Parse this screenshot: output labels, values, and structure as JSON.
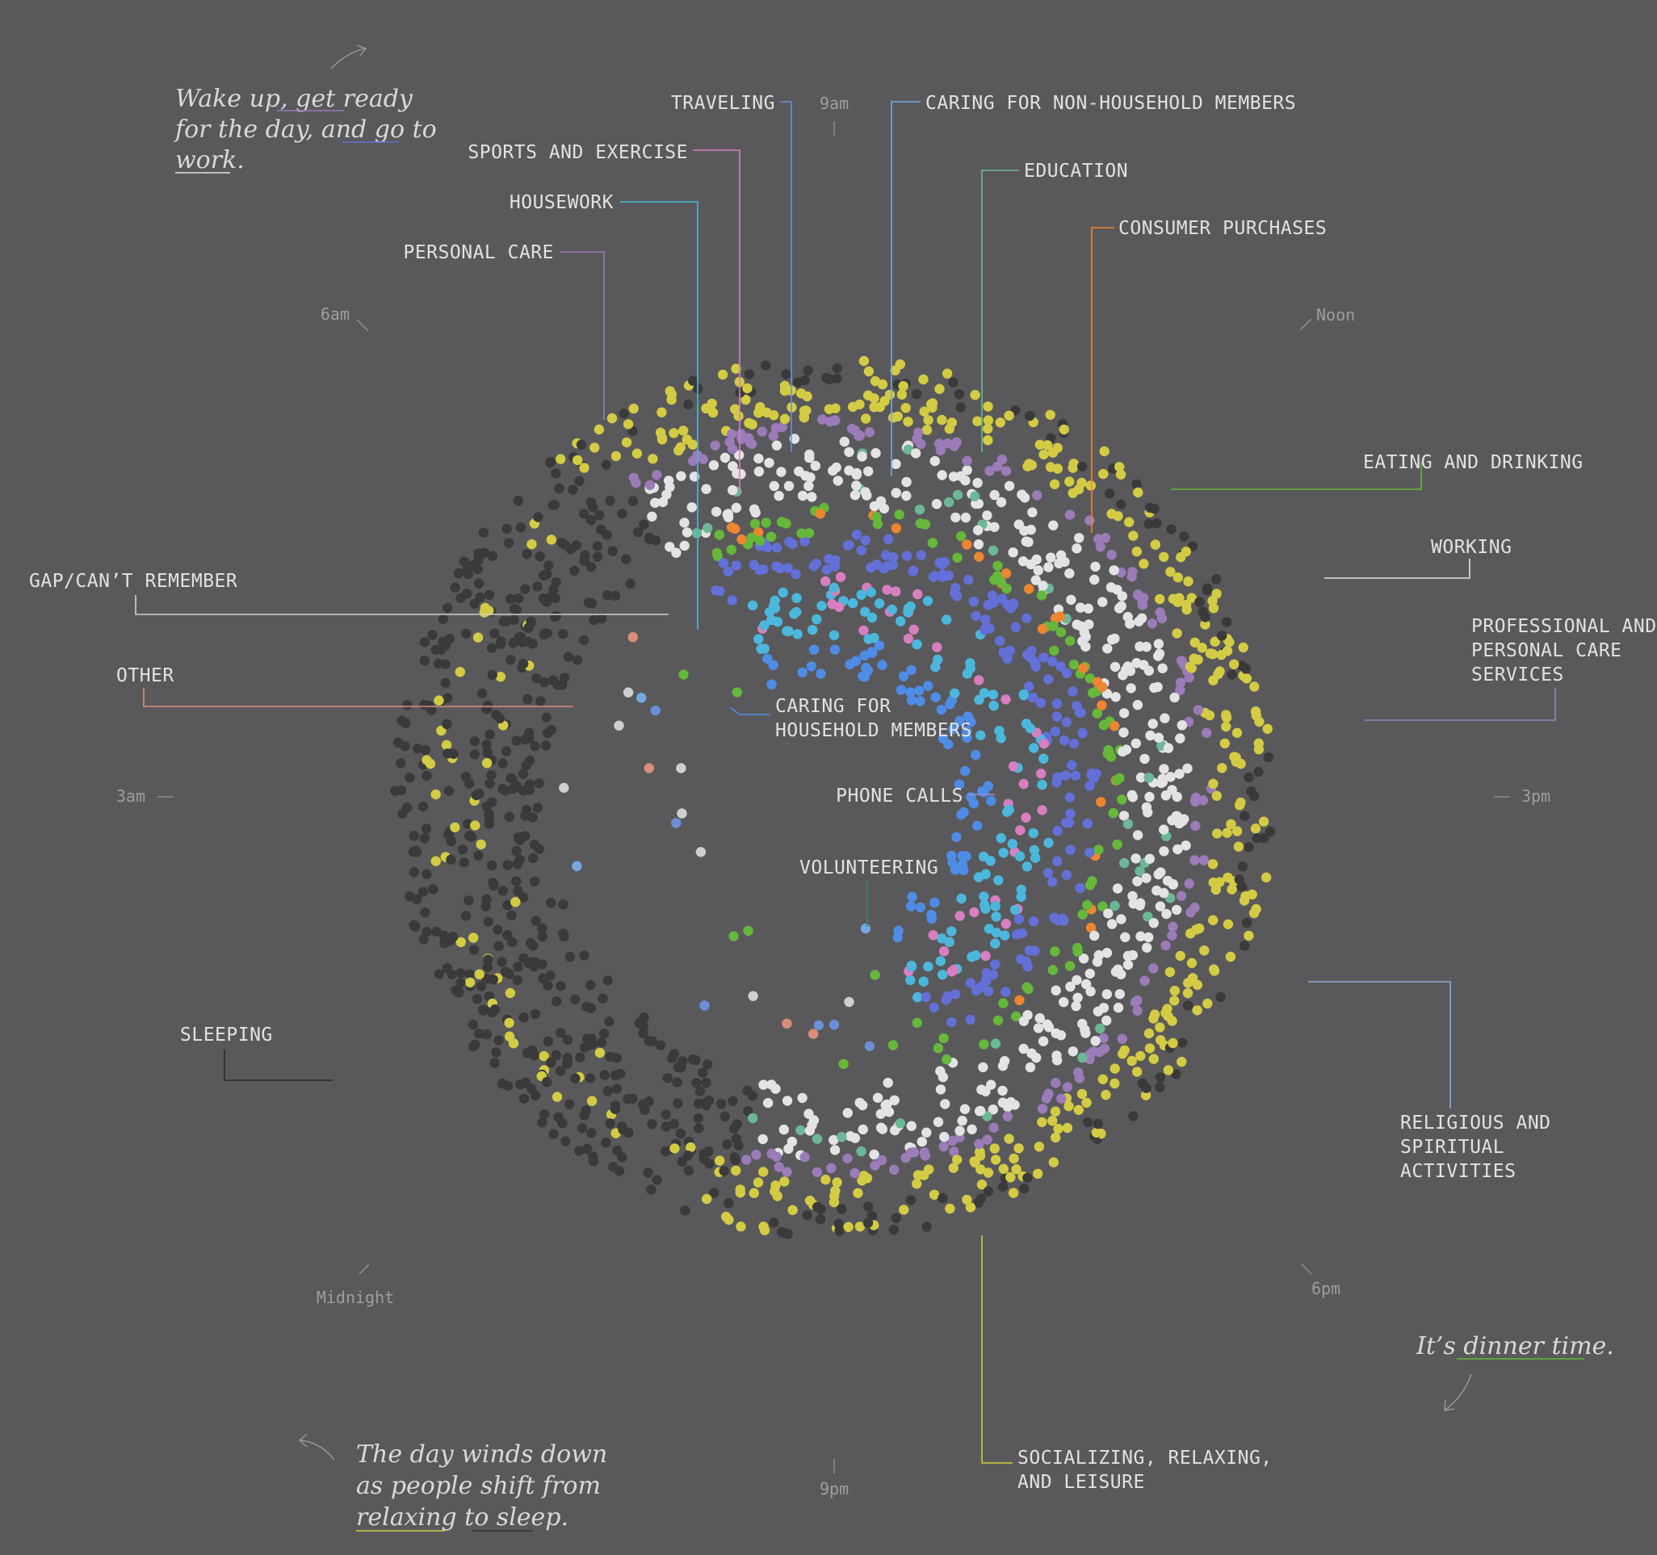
{
  "chart_data": {
    "type": "scatter",
    "title": "",
    "categories": [
      {
        "name": "SLEEPING",
        "color": "#3a3a3a"
      },
      {
        "name": "SOCIALIZING, RELAXING, AND LEISURE",
        "color": "#d4cb44"
      },
      {
        "name": "PERSONAL CARE",
        "color": "#9b7bb8"
      },
      {
        "name": "WORKING",
        "color": "#e3e3e3"
      },
      {
        "name": "EDUCATION",
        "color": "#6cb796"
      },
      {
        "name": "EATING AND DRINKING",
        "color": "#66b83a"
      },
      {
        "name": "CONSUMER PURCHASES",
        "color": "#ee8530"
      },
      {
        "name": "HOUSEWORK",
        "color": "#6370d8"
      },
      {
        "name": "TRAVELING",
        "color": "#6b8fd8"
      },
      {
        "name": "CARING FOR HOUSEHOLD MEMBERS",
        "color": "#4f8ce6"
      },
      {
        "name": "CARING FOR NON-HOUSEHOLD MEMBERS",
        "color": "#77a9e0"
      },
      {
        "name": "SPORTS AND EXERCISE",
        "color": "#d77fc0"
      },
      {
        "name": "PHONE CALLS",
        "color": "#a28ad8"
      },
      {
        "name": "VOLUNTEERING",
        "color": "#2f8a6c"
      },
      {
        "name": "PROFESSIONAL AND PERSONAL CARE SERVICES",
        "color": "#8d87c8"
      },
      {
        "name": "RELIGIOUS AND SPIRITUAL ACTIVITIES",
        "color": "#8fa9d6"
      },
      {
        "name": "GAP/CAN’T REMEMBER",
        "color": "#cfcfcf"
      },
      {
        "name": "OTHER",
        "color": "#d98e77"
      },
      {
        "name": "",
        "color": "#4cb7dc"
      }
    ],
    "time_labels": [
      "9am",
      "Noon",
      "3pm",
      "6pm",
      "9pm",
      "Midnight",
      "3am",
      "6am"
    ],
    "labels": {
      "traveling": "TRAVELING",
      "sports": "SPORTS AND EXERCISE",
      "housework": "HOUSEWORK",
      "personal_care": "PERSONAL CARE",
      "caring_non_household": "CARING FOR NON-HOUSEHOLD MEMBERS",
      "education": "EDUCATION",
      "consumer_purchases": "CONSUMER PURCHASES",
      "eating_drinking": "EATING AND DRINKING",
      "working": "WORKING",
      "prof_care_1": "PROFESSIONAL AND",
      "prof_care_2": "PERSONAL CARE",
      "prof_care_3": "SERVICES",
      "religious_1": "RELIGIOUS AND",
      "religious_2": "SPIRITUAL",
      "religious_3": "ACTIVITIES",
      "socializing_1": "SOCIALIZING, RELAXING,",
      "socializing_2": "AND LEISURE",
      "gap": "GAP/CAN’T REMEMBER",
      "other": "OTHER",
      "caring_household_1": "CARING FOR",
      "caring_household_2": "HOUSEHOLD MEMBERS",
      "phone_calls": "PHONE CALLS",
      "volunteering": "VOLUNTEERING",
      "sleeping": "SLEEPING"
    },
    "annotations": {
      "morning": [
        "Wake up, get ready",
        "for the day, and go to",
        "work."
      ],
      "dinner": "It’s dinner time.",
      "evening": [
        "The day winds down",
        "as people shift from",
        "relaxing to sleep."
      ]
    }
  }
}
